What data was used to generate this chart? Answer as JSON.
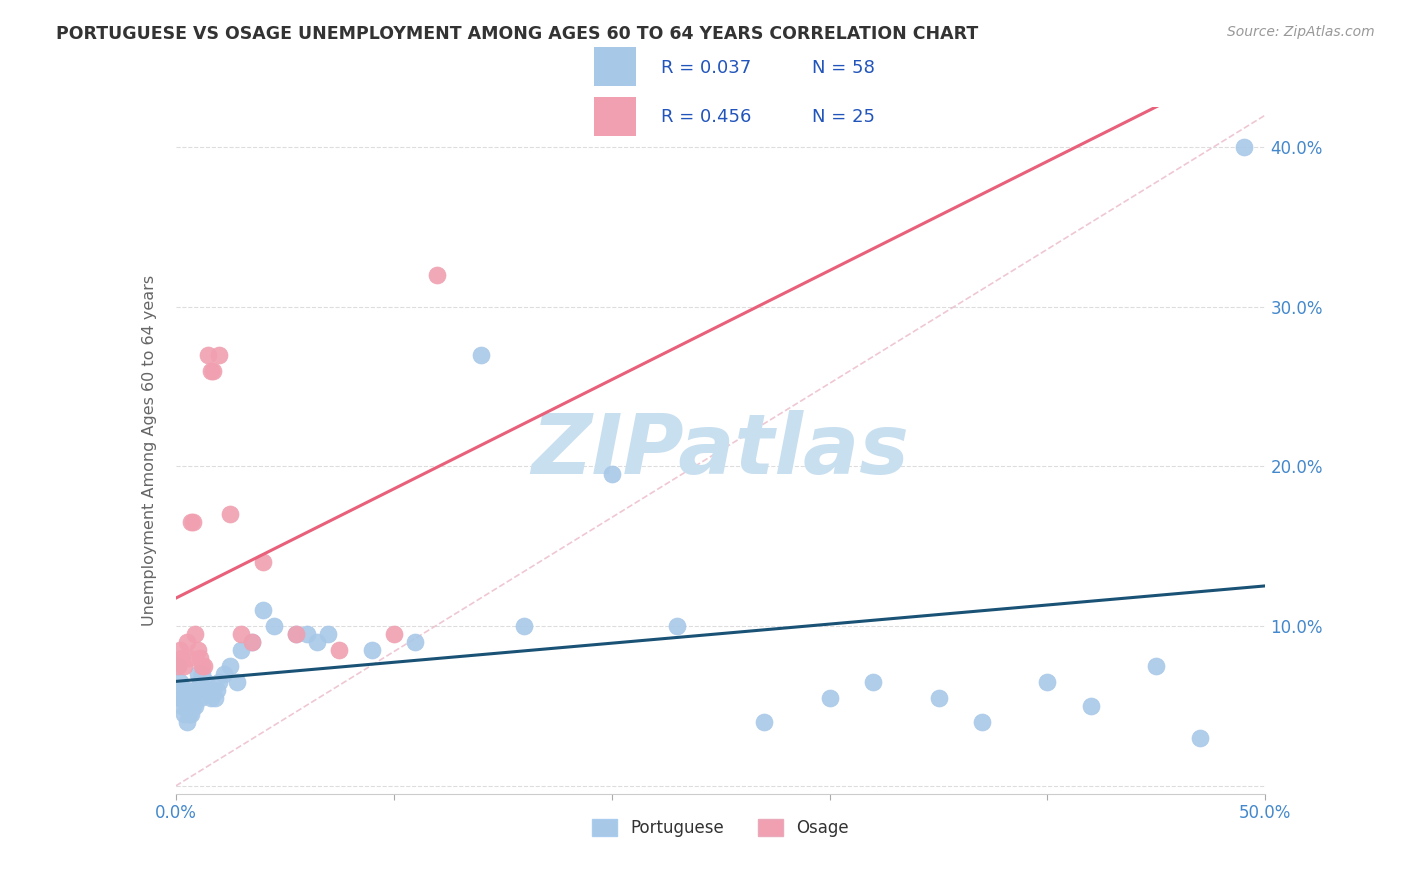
{
  "title": "PORTUGUESE VS OSAGE UNEMPLOYMENT AMONG AGES 60 TO 64 YEARS CORRELATION CHART",
  "source": "Source: ZipAtlas.com",
  "ylabel": "Unemployment Among Ages 60 to 64 years",
  "xlim": [
    0.0,
    0.5
  ],
  "ylim": [
    -0.005,
    0.425
  ],
  "xticks": [
    0.0,
    0.1,
    0.2,
    0.3,
    0.4,
    0.5
  ],
  "xticklabels": [
    "0.0%",
    "",
    "",
    "",
    "",
    "50.0%"
  ],
  "yticks_right": [
    0.0,
    0.1,
    0.2,
    0.3,
    0.4
  ],
  "yticklabels_right": [
    "",
    "10.0%",
    "20.0%",
    "30.0%",
    "40.0%"
  ],
  "portuguese_color": "#A8C8E8",
  "osage_color": "#F0A0B0",
  "portuguese_line_color": "#1A5276",
  "osage_line_color": "#E8607A",
  "diagonal_color": "#E8A0B0",
  "background_color": "#FFFFFF",
  "title_color": "#333333",
  "axis_label_color": "#666666",
  "tick_color": "#4488CC",
  "legend_R_N_color": "#2255BB",
  "watermark_color": "#C8DFF0",
  "portuguese_x": [
    0.001,
    0.002,
    0.002,
    0.003,
    0.003,
    0.004,
    0.004,
    0.005,
    0.005,
    0.005,
    0.006,
    0.006,
    0.007,
    0.007,
    0.008,
    0.008,
    0.009,
    0.009,
    0.01,
    0.01,
    0.011,
    0.011,
    0.012,
    0.013,
    0.014,
    0.015,
    0.016,
    0.017,
    0.018,
    0.019,
    0.02,
    0.022,
    0.025,
    0.028,
    0.03,
    0.035,
    0.04,
    0.045,
    0.055,
    0.06,
    0.065,
    0.07,
    0.09,
    0.11,
    0.14,
    0.16,
    0.2,
    0.23,
    0.27,
    0.3,
    0.32,
    0.35,
    0.37,
    0.4,
    0.42,
    0.45,
    0.47,
    0.49
  ],
  "portuguese_y": [
    0.075,
    0.065,
    0.055,
    0.06,
    0.05,
    0.055,
    0.045,
    0.06,
    0.05,
    0.04,
    0.055,
    0.045,
    0.055,
    0.045,
    0.055,
    0.05,
    0.06,
    0.05,
    0.07,
    0.06,
    0.065,
    0.055,
    0.07,
    0.06,
    0.065,
    0.06,
    0.055,
    0.06,
    0.055,
    0.06,
    0.065,
    0.07,
    0.075,
    0.065,
    0.085,
    0.09,
    0.11,
    0.1,
    0.095,
    0.095,
    0.09,
    0.095,
    0.085,
    0.09,
    0.27,
    0.1,
    0.195,
    0.1,
    0.04,
    0.055,
    0.065,
    0.055,
    0.04,
    0.065,
    0.05,
    0.075,
    0.03,
    0.4
  ],
  "osage_x": [
    0.001,
    0.002,
    0.003,
    0.004,
    0.005,
    0.006,
    0.007,
    0.008,
    0.009,
    0.01,
    0.011,
    0.012,
    0.013,
    0.015,
    0.016,
    0.017,
    0.02,
    0.025,
    0.03,
    0.035,
    0.04,
    0.055,
    0.075,
    0.1,
    0.12
  ],
  "osage_y": [
    0.075,
    0.085,
    0.08,
    0.075,
    0.09,
    0.08,
    0.165,
    0.165,
    0.095,
    0.085,
    0.08,
    0.075,
    0.075,
    0.27,
    0.26,
    0.26,
    0.27,
    0.17,
    0.095,
    0.09,
    0.14,
    0.095,
    0.085,
    0.095,
    0.32
  ]
}
